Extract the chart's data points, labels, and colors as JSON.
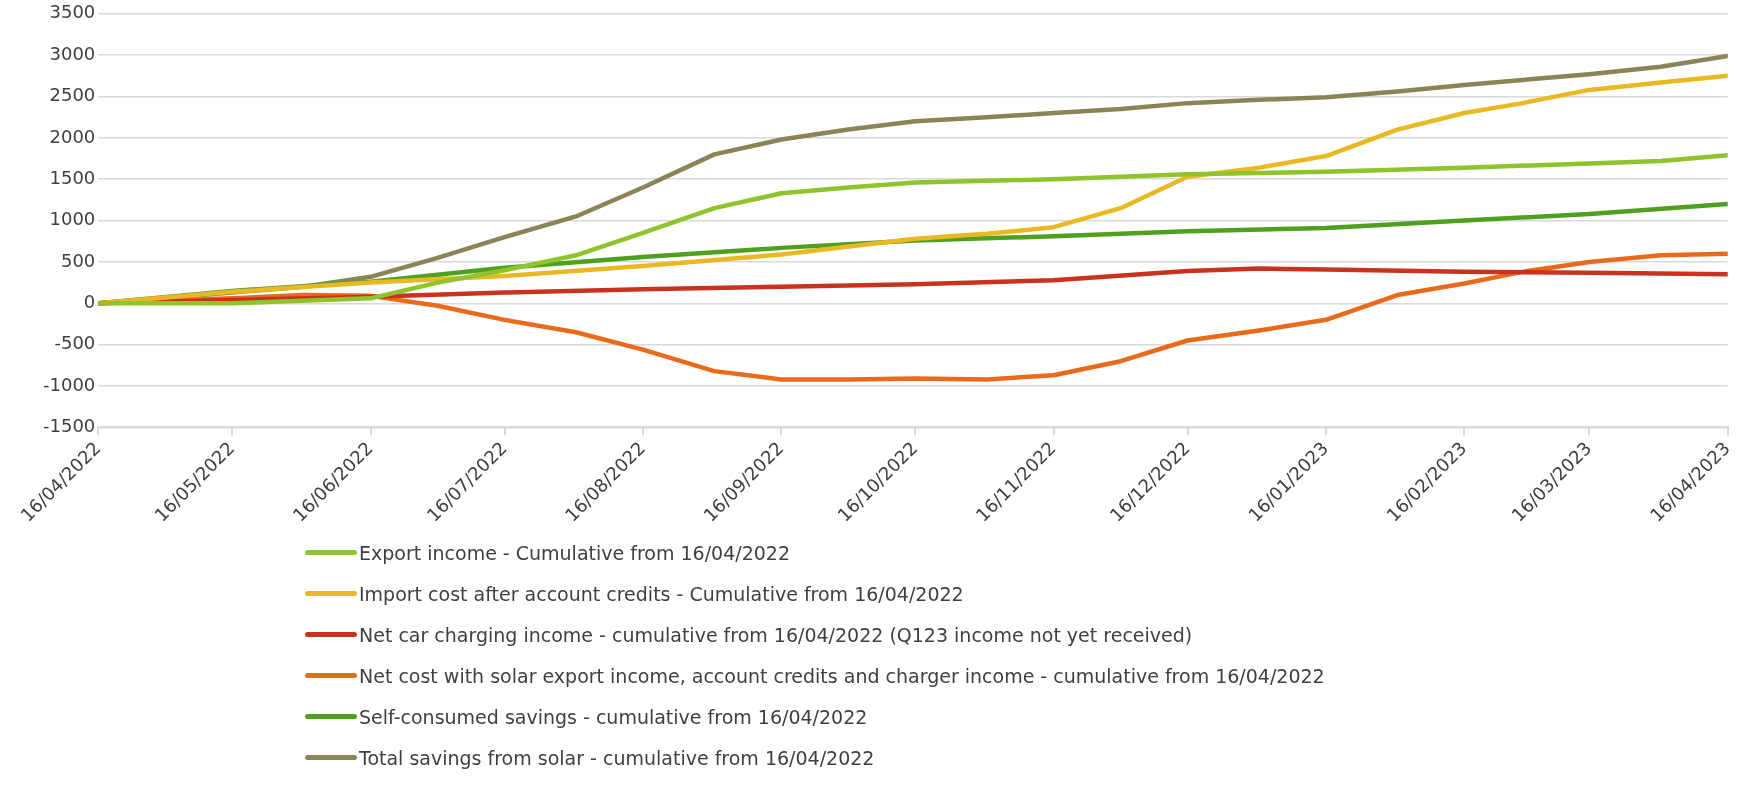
{
  "chart_data": {
    "type": "line",
    "grid": "y",
    "legend": "bottom",
    "line_style": "solid",
    "marker": "none",
    "xlim": [
      "2022-04-16",
      "2023-04-16"
    ],
    "xticks": [
      {
        "value": "2022-04-16",
        "label": "16/04/2022"
      },
      {
        "value": "2022-05-16",
        "label": "16/05/2022"
      },
      {
        "value": "2022-06-16",
        "label": "16/06/2022"
      },
      {
        "value": "2022-07-16",
        "label": "16/07/2022"
      },
      {
        "value": "2022-08-16",
        "label": "16/08/2022"
      },
      {
        "value": "2022-09-16",
        "label": "16/09/2022"
      },
      {
        "value": "2022-10-16",
        "label": "16/10/2022"
      },
      {
        "value": "2022-11-16",
        "label": "16/11/2022"
      },
      {
        "value": "2022-12-16",
        "label": "16/12/2022"
      },
      {
        "value": "2023-01-16",
        "label": "16/01/2023"
      },
      {
        "value": "2023-02-16",
        "label": "16/02/2023"
      },
      {
        "value": "2023-03-16",
        "label": "16/03/2023"
      },
      {
        "value": "2023-04-16",
        "label": "16/04/2023"
      }
    ],
    "ylim": [
      -1500,
      3500
    ],
    "yticks": [
      -1500,
      -1000,
      -500,
      0,
      500,
      1000,
      1500,
      2000,
      2500,
      3000,
      3500
    ],
    "series": [
      {
        "name": "Export income - Cumulative from 16/04/2022",
        "color": "#8fc42c",
        "x": [
          "2022-04-16",
          "2022-05-16",
          "2022-06-16",
          "2022-07-01",
          "2022-07-16",
          "2022-08-01",
          "2022-08-16",
          "2022-09-01",
          "2022-09-16",
          "2022-10-01",
          "2022-10-16",
          "2022-11-16",
          "2022-12-16",
          "2023-01-16",
          "2023-02-16",
          "2023-03-16",
          "2023-04-01",
          "2023-04-16"
        ],
        "values": [
          0,
          0,
          60,
          250,
          400,
          580,
          850,
          1150,
          1330,
          1400,
          1460,
          1500,
          1560,
          1590,
          1640,
          1690,
          1720,
          1790
        ]
      },
      {
        "name": "Import cost after account credits - Cumulative from 16/04/2022",
        "color": "#e8b923",
        "x": [
          "2022-04-16",
          "2022-05-16",
          "2022-06-16",
          "2022-07-16",
          "2022-08-16",
          "2022-09-16",
          "2022-10-16",
          "2022-11-01",
          "2022-11-16",
          "2022-12-01",
          "2022-12-16",
          "2023-01-01",
          "2023-01-16",
          "2023-02-01",
          "2023-02-16",
          "2023-03-01",
          "2023-03-16",
          "2023-04-01",
          "2023-04-16"
        ],
        "values": [
          0,
          140,
          250,
          330,
          450,
          590,
          780,
          840,
          920,
          1150,
          1530,
          1640,
          1780,
          2100,
          2300,
          2420,
          2580,
          2670,
          2750
        ]
      },
      {
        "name": "Net car charging income - cumulative from 16/04/2022 (Q123 income not yet received)",
        "color": "#c8321e",
        "x": [
          "2022-04-16",
          "2022-05-16",
          "2022-06-16",
          "2022-07-16",
          "2022-08-16",
          "2022-09-16",
          "2022-10-16",
          "2022-11-16",
          "2022-12-16",
          "2023-01-01",
          "2023-01-16",
          "2023-02-16",
          "2023-03-16",
          "2023-04-16"
        ],
        "values": [
          0,
          40,
          80,
          130,
          170,
          200,
          230,
          280,
          390,
          420,
          410,
          380,
          370,
          350
        ]
      },
      {
        "name": "Net cost with solar export income, account credits and charger income - cumulative from 16/04/2022",
        "color": "#ea6a1c",
        "x": [
          "2022-04-16",
          "2022-05-16",
          "2022-06-01",
          "2022-06-16",
          "2022-07-01",
          "2022-07-16",
          "2022-08-01",
          "2022-08-16",
          "2022-09-01",
          "2022-09-16",
          "2022-10-01",
          "2022-10-16",
          "2022-11-01",
          "2022-11-16",
          "2022-12-01",
          "2022-12-16",
          "2023-01-01",
          "2023-01-16",
          "2023-02-01",
          "2023-02-16",
          "2023-03-01",
          "2023-03-16",
          "2023-04-01",
          "2023-04-16"
        ],
        "values": [
          0,
          60,
          100,
          90,
          -30,
          -200,
          -350,
          -560,
          -820,
          -920,
          -920,
          -910,
          -920,
          -870,
          -700,
          -450,
          -330,
          -200,
          100,
          240,
          380,
          500,
          580,
          600
        ]
      },
      {
        "name": "Self-consumed savings - cumulative from 16/04/2022",
        "color": "#50a020",
        "x": [
          "2022-04-16",
          "2022-05-16",
          "2022-06-16",
          "2022-07-16",
          "2022-08-16",
          "2022-09-16",
          "2022-10-16",
          "2022-11-16",
          "2022-12-16",
          "2023-01-16",
          "2023-02-16",
          "2023-03-16",
          "2023-04-16"
        ],
        "values": [
          0,
          150,
          260,
          430,
          560,
          670,
          760,
          810,
          870,
          910,
          1000,
          1080,
          1200
        ]
      },
      {
        "name": "Total savings from solar - cumulative from 16/04/2022",
        "color": "#8b8456",
        "x": [
          "2022-04-16",
          "2022-05-16",
          "2022-06-01",
          "2022-06-16",
          "2022-07-01",
          "2022-07-16",
          "2022-08-01",
          "2022-08-16",
          "2022-09-01",
          "2022-09-16",
          "2022-10-01",
          "2022-10-16",
          "2022-11-01",
          "2022-11-16",
          "2022-12-01",
          "2022-12-16",
          "2023-01-01",
          "2023-01-16",
          "2023-02-01",
          "2023-02-16",
          "2023-03-01",
          "2023-03-16",
          "2023-04-01",
          "2023-04-16"
        ],
        "values": [
          0,
          130,
          200,
          320,
          550,
          800,
          1050,
          1400,
          1800,
          1980,
          2100,
          2200,
          2250,
          2300,
          2350,
          2420,
          2460,
          2490,
          2560,
          2640,
          2700,
          2770,
          2860,
          2990
        ]
      }
    ]
  }
}
